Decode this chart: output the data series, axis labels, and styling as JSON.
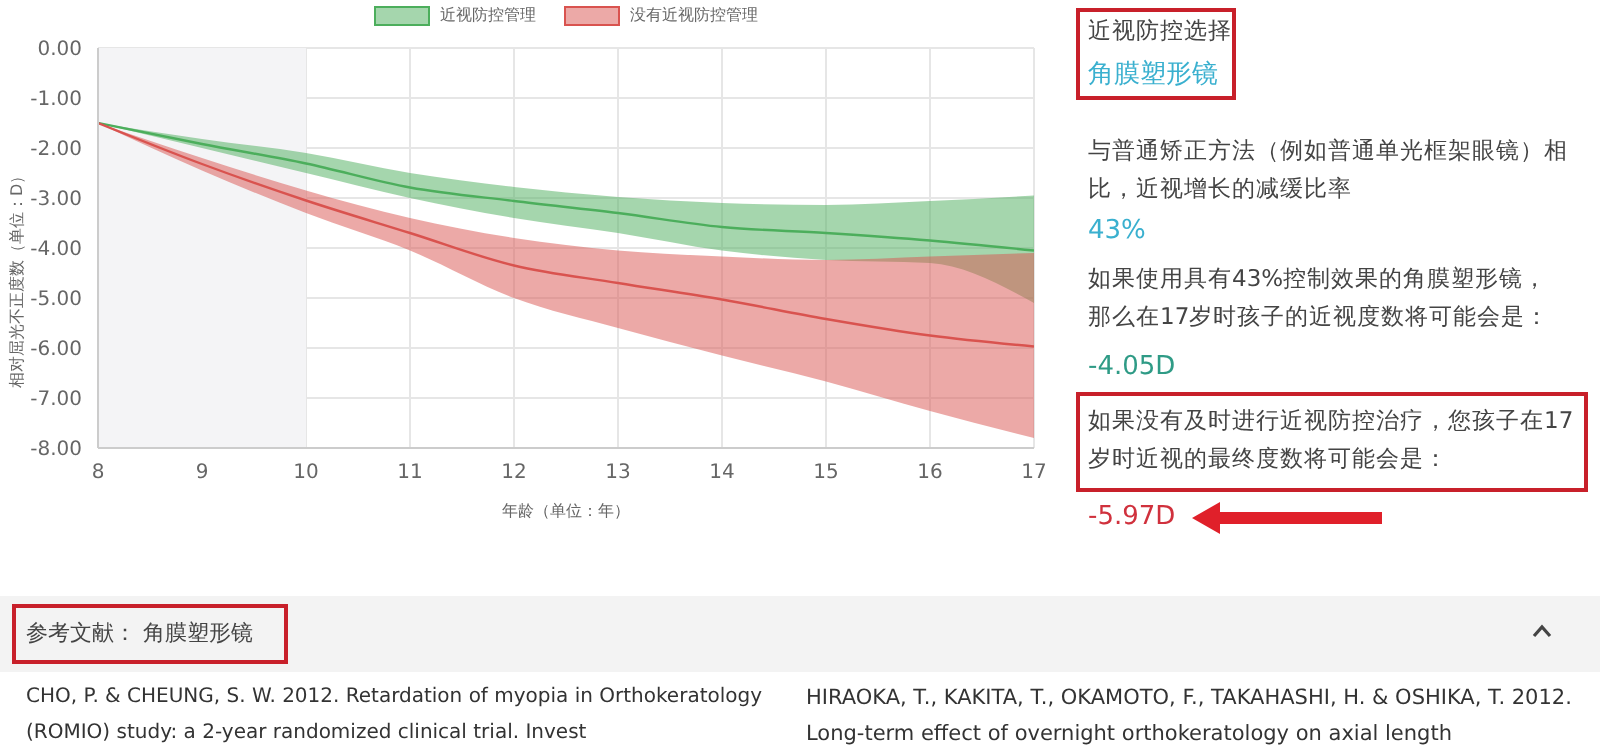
{
  "chart_data": {
    "type": "line",
    "xlabel": "年龄（单位：年）",
    "ylabel": "相对屈光不正度数（单位：D）",
    "x": [
      8,
      9,
      10,
      11,
      12,
      13,
      14,
      15,
      16,
      17
    ],
    "series": [
      {
        "name": "近视防控管理",
        "color": "#4cae5c",
        "values": [
          -1.5,
          -1.92,
          -2.31,
          -2.79,
          -3.06,
          -3.3,
          -3.58,
          -3.7,
          -3.85,
          -4.05
        ],
        "lower": [
          -1.5,
          -2.0,
          -2.5,
          -3.0,
          -3.4,
          -3.7,
          -4.05,
          -4.24,
          -4.3,
          -5.1
        ],
        "upper": [
          -1.5,
          -1.82,
          -2.1,
          -2.5,
          -2.78,
          -2.98,
          -3.1,
          -3.14,
          -3.06,
          -2.95
        ]
      },
      {
        "name": "没有近视防控管理",
        "color": "#d9534f",
        "values": [
          -1.5,
          -2.32,
          -3.05,
          -3.7,
          -4.35,
          -4.7,
          -5.03,
          -5.42,
          -5.75,
          -5.97
        ],
        "lower": [
          -1.5,
          -2.45,
          -3.3,
          -4.05,
          -5.0,
          -5.6,
          -6.15,
          -6.67,
          -7.26,
          -7.8
        ],
        "upper": [
          -1.5,
          -2.2,
          -2.85,
          -3.4,
          -3.8,
          -4.05,
          -4.17,
          -4.24,
          -4.17,
          -4.1
        ]
      }
    ],
    "xlim": [
      8,
      17
    ],
    "xticks": [
      8,
      9,
      10,
      11,
      12,
      13,
      14,
      15,
      16,
      17
    ],
    "ylim": [
      -8,
      0
    ],
    "yticks": [
      {
        "value": 0,
        "label": "0.00"
      },
      {
        "value": -1,
        "label": "-1.00"
      },
      {
        "value": -2,
        "label": "-2.00"
      },
      {
        "value": -3,
        "label": "-3.00"
      },
      {
        "value": -4,
        "label": "-4.00"
      },
      {
        "value": -5,
        "label": "-5.00"
      },
      {
        "value": -6,
        "label": "-6.00"
      },
      {
        "value": -7,
        "label": "-7.00"
      },
      {
        "value": -8,
        "label": "-8.00"
      }
    ],
    "bands": [
      {
        "axis": "x",
        "from": 8,
        "to": 10,
        "color": "#f4f4f6"
      }
    ],
    "grid": true,
    "legend": "top",
    "marker": "none",
    "line_style": "solid",
    "annotations": [
      "近视防控选择",
      "角膜塑形镜",
      "与普通矫正方法（例如普通单光框架眼镜）相比，近视增长的减缓比率",
      "43%",
      "如果使用具有43%控制效果的角膜塑形镜，那么在17岁时孩子的近视度数将可能会是：",
      "-4.05D",
      "如果没有及时进行近视防控治疗，您孩子在17岁时近视的最终度数将可能会是：",
      "-5.97D",
      "参考文献： 角膜塑形镜",
      "CHO, P. & CHEUNG, S. W. 2012. Retardation of myopia in Orthokeratology (ROMIO) study: a 2-year randomized clinical trial. Invest",
      "HIRAOKA, T., KAKITA, T., OKAMOTO, F., TAKAHASHI, H. & OSHIKA, T. 2012. Long-term effect of overnight orthokeratology on axial length"
    ]
  }
}
